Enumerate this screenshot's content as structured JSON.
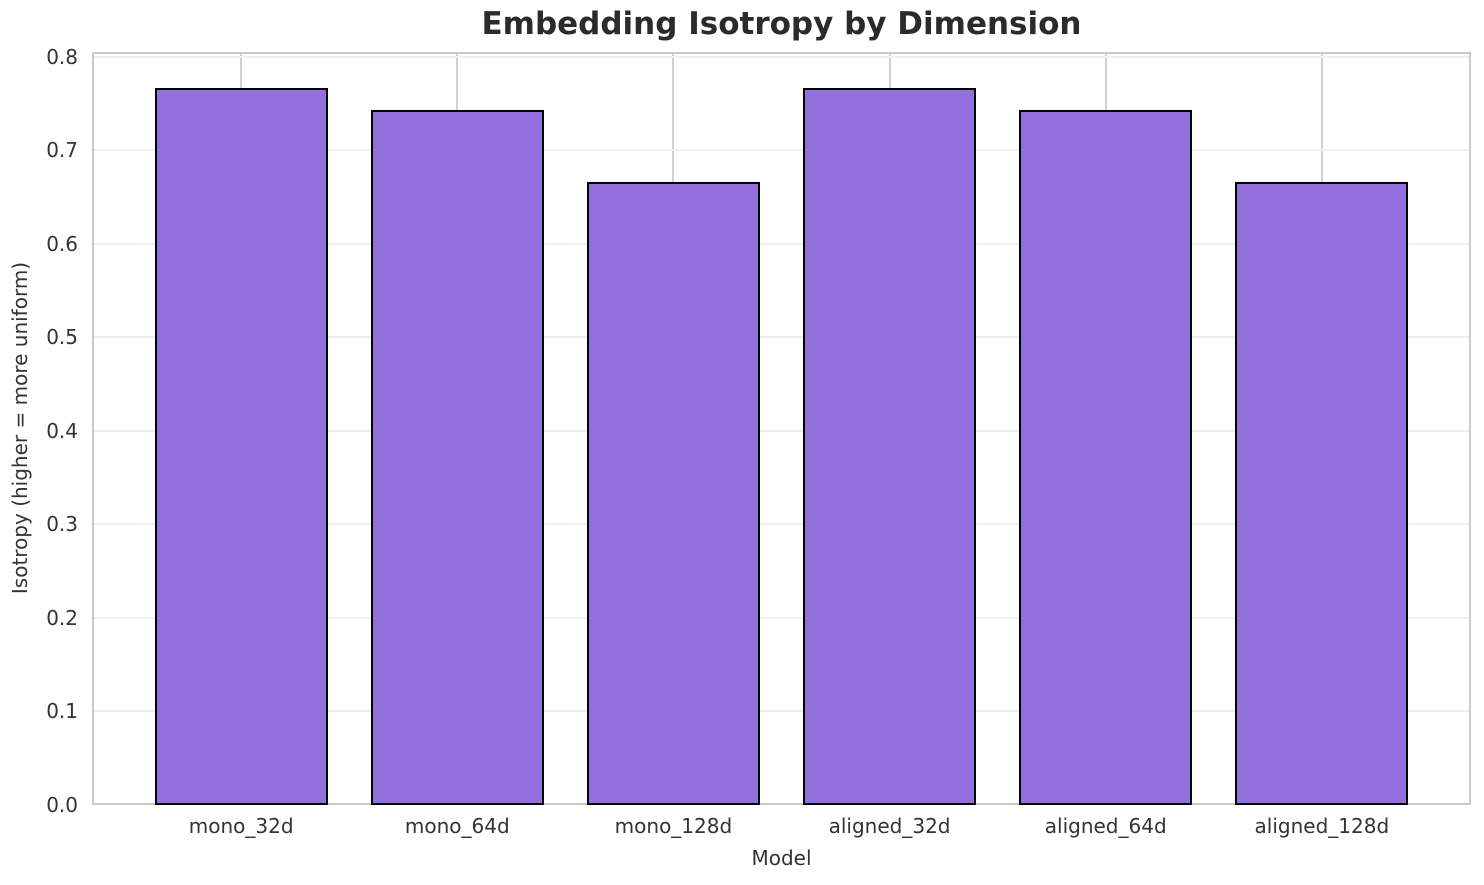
{
  "chart_data": {
    "type": "bar",
    "title": "Embedding Isotropy by Dimension",
    "xlabel": "Model",
    "ylabel": "Isotropy (higher = more uniform)",
    "categories": [
      "mono_32d",
      "mono_64d",
      "mono_128d",
      "aligned_32d",
      "aligned_64d",
      "aligned_128d"
    ],
    "values": [
      0.766,
      0.743,
      0.666,
      0.766,
      0.743,
      0.666
    ],
    "ylim": [
      0,
      0.805
    ],
    "yticks": [
      0.0,
      0.1,
      0.2,
      0.3,
      0.4,
      0.5,
      0.6,
      0.7,
      0.8
    ],
    "ytick_labels": [
      "0.0",
      "0.1",
      "0.2",
      "0.3",
      "0.4",
      "0.5",
      "0.6",
      "0.7",
      "0.8"
    ],
    "grid": true,
    "legend": "none",
    "bar_color": "#9370DB",
    "bar_edge_color": "#000000",
    "h_grid_color": "#efefef",
    "v_grid_color": "#d2d2d2",
    "spine_color": "#c9c9c9",
    "title_color": "#2b2b2b",
    "text_color": "#333333"
  }
}
